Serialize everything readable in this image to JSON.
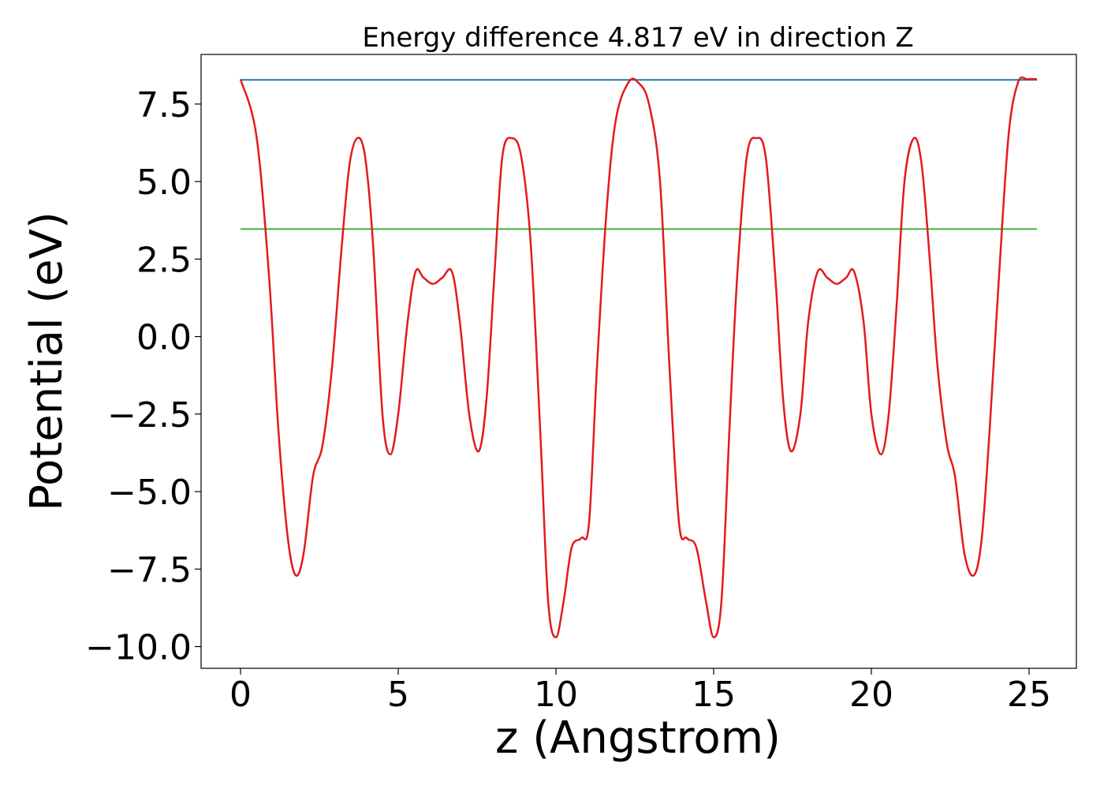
{
  "chart_data": {
    "type": "line",
    "title": "Energy difference 4.817 eV in direction Z",
    "xlabel": "z (Angstrom)",
    "ylabel": "Potential (eV)",
    "xlim": [
      -1.25,
      26.5
    ],
    "ylim": [
      -10.7,
      9.1
    ],
    "x_ticks": [
      0,
      5,
      10,
      15,
      20,
      25
    ],
    "x_tick_labels": [
      "0",
      "5",
      "10",
      "15",
      "20",
      "25"
    ],
    "y_ticks": [
      -10,
      -7.5,
      -5,
      -2.5,
      0,
      2.5,
      5,
      7.5
    ],
    "y_tick_labels": [
      "−10.0",
      "−7.5",
      "−5.0",
      "−2.5",
      "0.0",
      "2.5",
      "5.0",
      "7.5"
    ],
    "grid": false,
    "legend": "none",
    "series": [
      {
        "color": "#e31a1c",
        "x": [
          0,
          0.5,
          0.9,
          1.2,
          1.5,
          1.75,
          2.0,
          2.3,
          2.6,
          2.9,
          3.2,
          3.45,
          3.7,
          3.95,
          4.2,
          4.5,
          4.75,
          5.0,
          5.3,
          5.55,
          5.8,
          6.1,
          6.4,
          6.7,
          6.95,
          7.25,
          7.55,
          7.8,
          8.05,
          8.3,
          8.6,
          8.9,
          9.2,
          9.5,
          9.75,
          10.0,
          10.25,
          10.5,
          10.8,
          11.05,
          11.3,
          11.6,
          11.9,
          12.3,
          12.6,
          12.95,
          13.3,
          13.6,
          13.9,
          14.15,
          14.45,
          14.75,
          15.0,
          15.25,
          15.5,
          15.75,
          16.05,
          16.35,
          16.65,
          16.95,
          17.2,
          17.45,
          17.75,
          18.0,
          18.3,
          18.6,
          18.9,
          19.2,
          19.45,
          19.75,
          20.0,
          20.3,
          20.55,
          20.8,
          21.05,
          21.35,
          21.6,
          21.85,
          22.1,
          22.4,
          22.65,
          22.95,
          23.25,
          23.5,
          23.75,
          24.05,
          24.35,
          24.65,
          24.95,
          25.25
        ],
        "y": [
          8.3,
          6.5,
          2.0,
          -3.0,
          -6.5,
          -7.7,
          -7.0,
          -4.5,
          -3.5,
          -1.0,
          2.8,
          5.5,
          6.4,
          5.8,
          3.0,
          -2.5,
          -3.8,
          -2.5,
          0.5,
          2.1,
          1.9,
          1.7,
          1.9,
          2.1,
          0.5,
          -2.5,
          -3.7,
          -2.0,
          2.0,
          5.8,
          6.4,
          5.8,
          3.0,
          -3.0,
          -8.5,
          -9.7,
          -8.5,
          -6.8,
          -6.5,
          -6.0,
          -1.0,
          4.0,
          7.0,
          8.2,
          8.2,
          7.5,
          5.0,
          -1.0,
          -6.0,
          -6.5,
          -6.8,
          -8.5,
          -9.7,
          -8.5,
          -3.0,
          2.0,
          5.8,
          6.4,
          5.8,
          2.0,
          -2.0,
          -3.7,
          -2.5,
          0.5,
          2.1,
          1.9,
          1.7,
          1.9,
          2.1,
          0.5,
          -2.5,
          -3.8,
          -2.5,
          1.0,
          5.0,
          6.4,
          5.5,
          2.5,
          -1.0,
          -3.5,
          -4.5,
          -7.0,
          -7.7,
          -6.5,
          -3.0,
          2.0,
          6.5,
          8.2,
          8.3,
          8.3
        ]
      },
      {
        "color": "#1f77b4",
        "x": [
          0,
          25.25
        ],
        "y": [
          8.28,
          8.28
        ]
      },
      {
        "color": "#4daf4a",
        "x": [
          0,
          25.25
        ],
        "y": [
          3.47,
          3.47
        ]
      }
    ]
  }
}
